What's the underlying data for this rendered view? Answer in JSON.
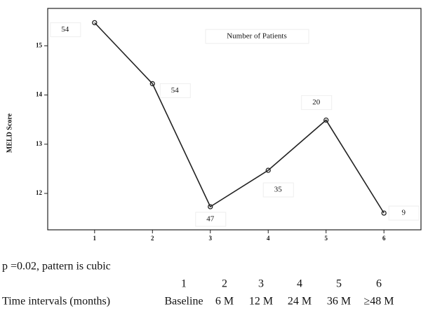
{
  "chart_data": {
    "type": "line",
    "ylabel": "MELD Score",
    "x": [
      1,
      2,
      3,
      4,
      5,
      6
    ],
    "series": [
      {
        "color": "#222222",
        "values": [
          15.47,
          14.23,
          11.73,
          12.47,
          13.49,
          11.6
        ]
      }
    ],
    "xlim": [
      0.19,
      6.64
    ],
    "xticks": [
      1,
      2,
      3,
      4,
      5,
      6
    ],
    "ylim": [
      11.26,
      15.76
    ],
    "yticks": [
      12,
      13,
      14,
      15
    ],
    "annotation_title": "Number of Patients",
    "patient_counts": [
      54,
      54,
      47,
      35,
      20,
      9
    ]
  },
  "footer": {
    "note": "p =0.02, pattern is cubic",
    "row_label": "Time intervals (months)",
    "intervals": [
      {
        "index": "1",
        "label": "Baseline"
      },
      {
        "index": "2",
        "label": "6 M"
      },
      {
        "index": "3",
        "label": "12 M"
      },
      {
        "index": "4",
        "label": "24 M"
      },
      {
        "index": "5",
        "label": "36 M"
      },
      {
        "index": "6",
        "label": "≥48 M"
      }
    ]
  }
}
